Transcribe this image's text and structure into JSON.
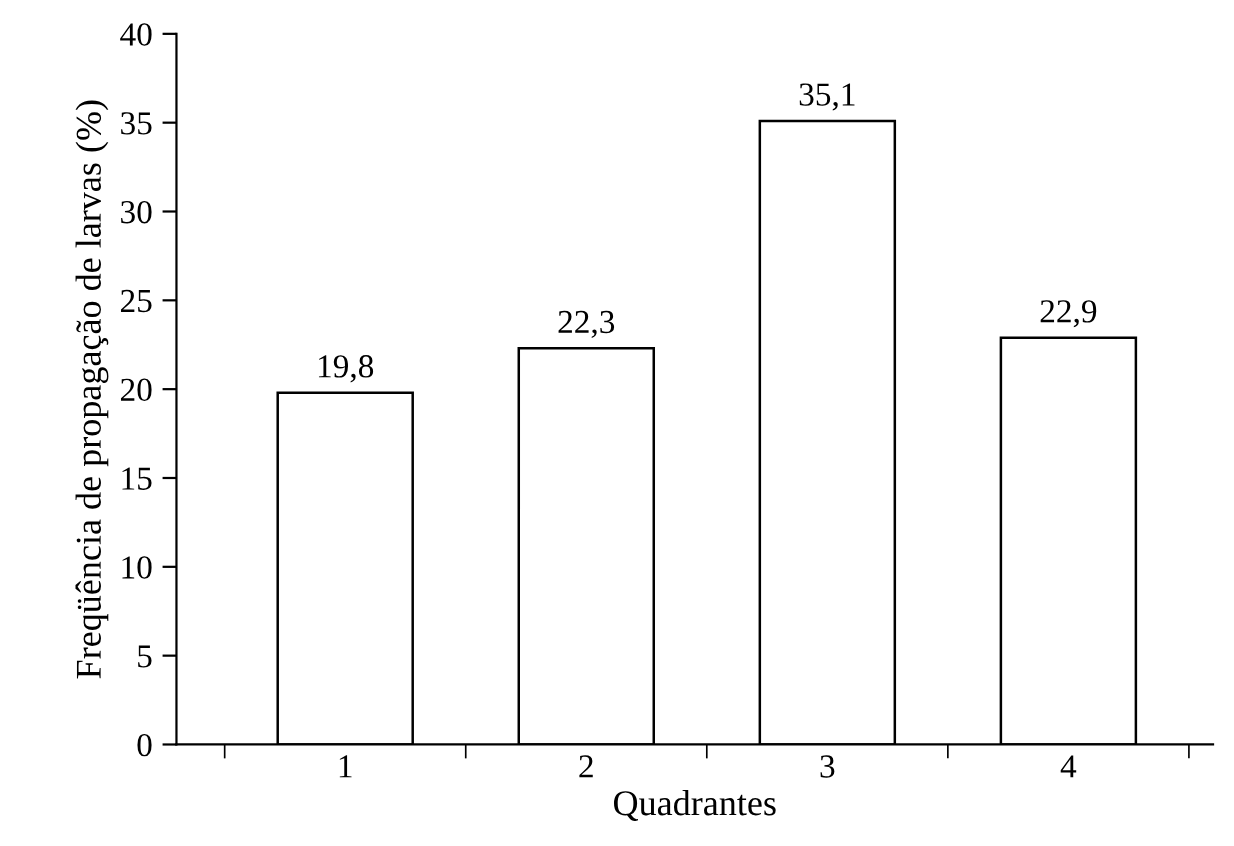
{
  "chart_data": {
    "type": "bar",
    "xlabel": "Quadrantes",
    "ylabel": "Freqüência de propagação de larvas (%)",
    "categories": [
      "1",
      "2",
      "3",
      "4"
    ],
    "values": [
      19.8,
      22.3,
      35.1,
      22.9
    ],
    "value_labels": [
      "19,8",
      "22,3",
      "35,1",
      "22,9"
    ],
    "color": "#ffffff",
    "ylim": [
      0,
      40
    ],
    "yticks": [
      0,
      5,
      10,
      15,
      20,
      25,
      30,
      35,
      40
    ],
    "grid": false,
    "legend": false
  }
}
